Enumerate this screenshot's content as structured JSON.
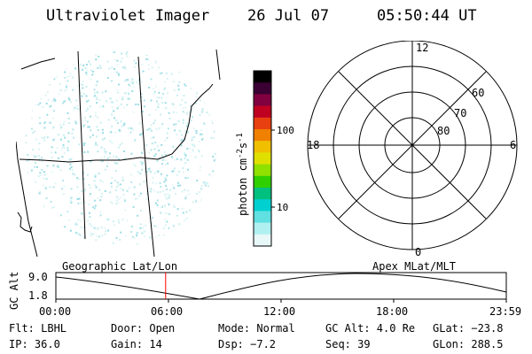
{
  "header": {
    "instrument": "Ultraviolet Imager",
    "date": "26 Jul 07",
    "time": "05:50:44 UT"
  },
  "colorbar": {
    "label": "photon cm⁻²s⁻¹",
    "label_main": "photon cm",
    "label_exp1": "-2",
    "label_s": "s",
    "label_exp2": "-1",
    "ticks": [
      "100",
      "10"
    ],
    "colors": [
      "#000000",
      "#3a0033",
      "#800040",
      "#c00020",
      "#e84010",
      "#f08000",
      "#f0c000",
      "#e0e000",
      "#90e000",
      "#30d000",
      "#00c080",
      "#00d0d0",
      "#60e0e0",
      "#b0f0f0",
      "#e8f8f8"
    ]
  },
  "polar": {
    "mlt_labels": {
      "top": "12",
      "left": "18",
      "right": "6",
      "bottom": "0"
    },
    "lat_labels": [
      "60",
      "70",
      "80"
    ]
  },
  "orbit": {
    "left_label": "Geographic Lat/Lon",
    "right_label": "Apex MLat/MLT",
    "axis_label": "GC Alt",
    "y_ticks": [
      "9.0",
      "1.8"
    ],
    "x_ticks": [
      "00:00",
      "06:00",
      "12:00",
      "18:00",
      "23:59"
    ],
    "current_marker_hours": 5.85,
    "marker_color": "#ff0000"
  },
  "info": {
    "row1": {
      "flt": "Flt: LBHL",
      "door": "Door: Open",
      "mode": "Mode: Normal",
      "gcalt": "GC Alt: 4.0 Re",
      "glat": "GLat: −23.8"
    },
    "row2": {
      "ip": "IP: 36.0",
      "gain": "Gain: 14",
      "dsp": "Dsp:    −7.2",
      "seq": "Seq: 39",
      "glon": "GLon: 288.5"
    }
  }
}
